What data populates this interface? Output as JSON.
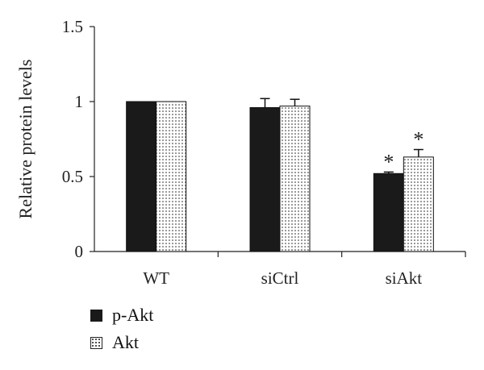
{
  "chart_data": {
    "type": "bar",
    "categories": [
      "WT",
      "siCtrl",
      "siAkt"
    ],
    "series": [
      {
        "name": "p-Akt",
        "values": [
          1.0,
          0.96,
          0.52
        ],
        "errors": [
          0.0,
          0.06,
          0.01
        ],
        "pattern": "solid",
        "color": "#1a1a1a"
      },
      {
        "name": "Akt",
        "values": [
          1.0,
          0.97,
          0.63
        ],
        "errors": [
          0.0,
          0.045,
          0.05
        ],
        "pattern": "dotted",
        "color": "#ffffff"
      }
    ],
    "ylabel": "Relative protein levels",
    "ylim": [
      0,
      1.5
    ],
    "yticks": [
      0,
      0.5,
      1,
      1.5
    ],
    "ytick_labels": [
      "0",
      "0.5",
      "1",
      "1.5"
    ],
    "annotations": [
      {
        "category": "siAkt",
        "series": "p-Akt",
        "text": "*"
      },
      {
        "category": "siAkt",
        "series": "Akt",
        "text": "*"
      }
    ],
    "legend_position": "bottom-left",
    "grid": false
  }
}
